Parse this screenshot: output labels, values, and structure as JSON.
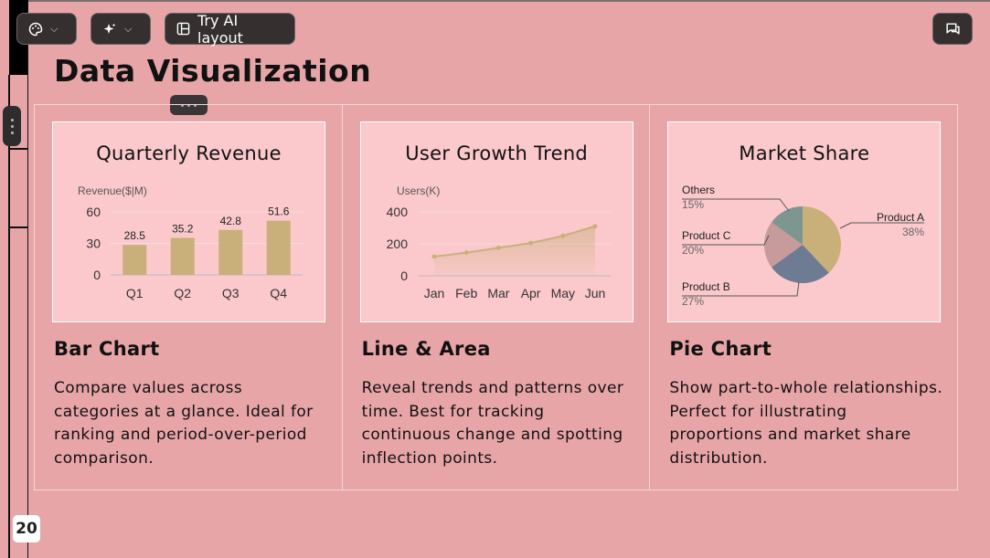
{
  "toolbar": {
    "ai_layout_label": "Try AI layout"
  },
  "page": {
    "title": "Data Visualization",
    "page_number": "20"
  },
  "columns": [
    {
      "chart_title": "Quarterly Revenue",
      "heading": "Bar Chart",
      "description": "Compare values across categories at a glance. Ideal for ranking and period-over-period comparison."
    },
    {
      "chart_title": "User Growth Trend",
      "heading": "Line & Area",
      "description": "Reveal trends and patterns over time. Best for tracking continuous change and spotting inflection points."
    },
    {
      "chart_title": "Market Share",
      "heading": "Pie Chart",
      "description": "Show part-to-whole relationships. Perfect for illustrating proportions and market share distribution."
    }
  ],
  "colors": {
    "background": "#e8a5a8",
    "card": "#fbc9cc",
    "bar": "#c9b07b",
    "line": "#c9b07b",
    "pie_product_a": "#c9b07b",
    "pie_product_b": "#6e7b93",
    "pie_product_c": "#c79a9b",
    "pie_others": "#7e9690"
  },
  "chart_data": [
    {
      "type": "bar",
      "title": "Quarterly Revenue",
      "ylabel": "Revenue($|M)",
      "categories": [
        "Q1",
        "Q2",
        "Q3",
        "Q4"
      ],
      "values": [
        28.5,
        35.2,
        42.8,
        51.6
      ],
      "yticks": [
        0,
        30,
        60
      ],
      "ylim": [
        0,
        60
      ],
      "grid": true
    },
    {
      "type": "area",
      "title": "User Growth Trend",
      "ylabel": "Users(K)",
      "categories": [
        "Jan",
        "Feb",
        "Mar",
        "Apr",
        "May",
        "Jun"
      ],
      "values": [
        120,
        145,
        175,
        205,
        250,
        310
      ],
      "yticks": [
        0,
        200,
        400
      ],
      "ylim": [
        0,
        400
      ],
      "grid": true
    },
    {
      "type": "pie",
      "title": "Market Share",
      "slices": [
        {
          "label": "Product A",
          "value": 38,
          "pct": "38%"
        },
        {
          "label": "Product B",
          "value": 27,
          "pct": "27%"
        },
        {
          "label": "Product C",
          "value": 20,
          "pct": "20%"
        },
        {
          "label": "Others",
          "value": 15,
          "pct": "15%"
        }
      ]
    }
  ]
}
